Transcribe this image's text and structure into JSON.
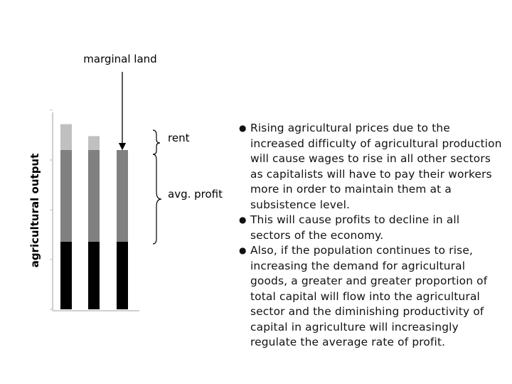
{
  "annotations": {
    "marginal_land": "marginal land",
    "rent": "rent",
    "avg_profit": "avg. profit"
  },
  "chart_data": {
    "type": "bar",
    "stacked": true,
    "categories": [
      "",
      "",
      ""
    ],
    "ylabel": "agricultural output",
    "series": [
      {
        "values": [
          0.34,
          0.34,
          0.34
        ],
        "color": "#000000"
      },
      {
        "values": [
          0.46,
          0.46,
          0.46
        ],
        "color": "#808080"
      },
      {
        "values": [
          0.13,
          0.07,
          0
        ],
        "color": "#c0c0c0"
      }
    ],
    "ylim": [
      0,
      1
    ],
    "grid": false
  },
  "bullets": [
    "Rising agricultural prices due to the increased difficulty of agricultural production will cause wages to rise in all other sectors as capitalists will have to pay their workers more in order to maintain them at a subsistence level.",
    "This will cause profits to decline in all sectors of the economy.",
    "Also, if the population continues to rise, increasing the demand for agricultural goods, a greater and greater proportion of total capital will flow into the agricultural sector and the diminishing productivity of capital in agriculture will increasingly regulate the average rate of profit."
  ]
}
